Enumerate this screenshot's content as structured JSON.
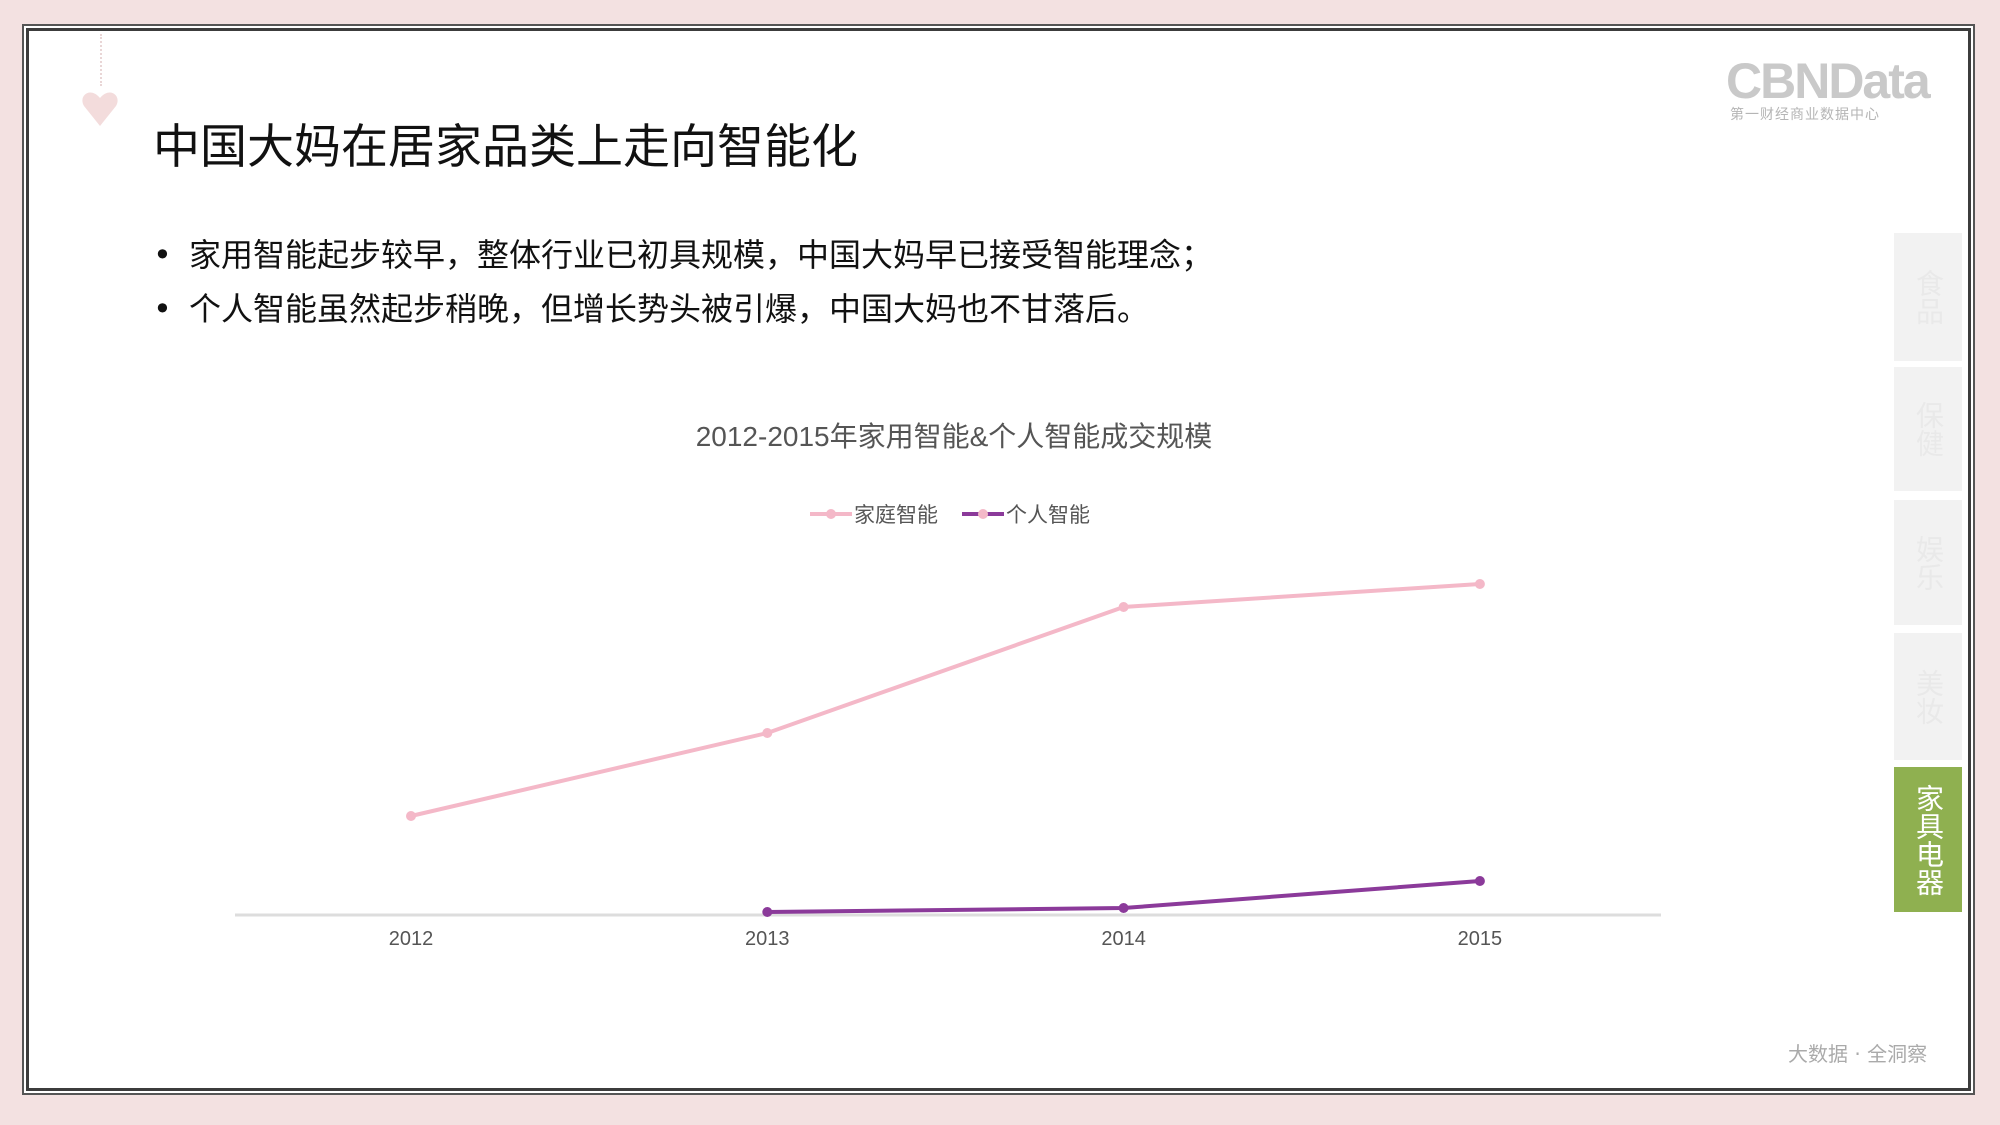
{
  "slide": {
    "title": "中国大妈在居家品类上走向智能化",
    "bullets": [
      "家用智能起步较早，整体行业已初具规模，中国大妈早已接受智能理念；",
      "个人智能虽然起步稍晚，但增长势头被引爆，中国大妈也不甘落后。"
    ],
    "logo": {
      "text": "CBNData",
      "subtitle": "第一财经商业数据中心"
    },
    "footer": "大数据 · 全洞察",
    "tabs": [
      {
        "label": "食品",
        "active": false
      },
      {
        "label": "保健",
        "active": false
      },
      {
        "label": "娱乐",
        "active": false
      },
      {
        "label": "美妆",
        "active": false
      },
      {
        "label": "家具电器",
        "active": true
      }
    ],
    "accent_color": "#8fb050"
  },
  "chart_data": {
    "type": "line",
    "title": "2012-2015年家用智能&个人智能成交规模",
    "categories": [
      "2012",
      "2013",
      "2014",
      "2015"
    ],
    "legend_position": "top",
    "grid": false,
    "y_axis_labels_shown": false,
    "series": [
      {
        "name": "家庭智能",
        "color": "#f4b8c8",
        "values": [
          99,
          182,
          308,
          331
        ]
      },
      {
        "name": "个人智能",
        "color": "#8b3a9a",
        "values": [
          null,
          3,
          7,
          34
        ]
      }
    ],
    "ylim": [
      0,
      360
    ]
  }
}
